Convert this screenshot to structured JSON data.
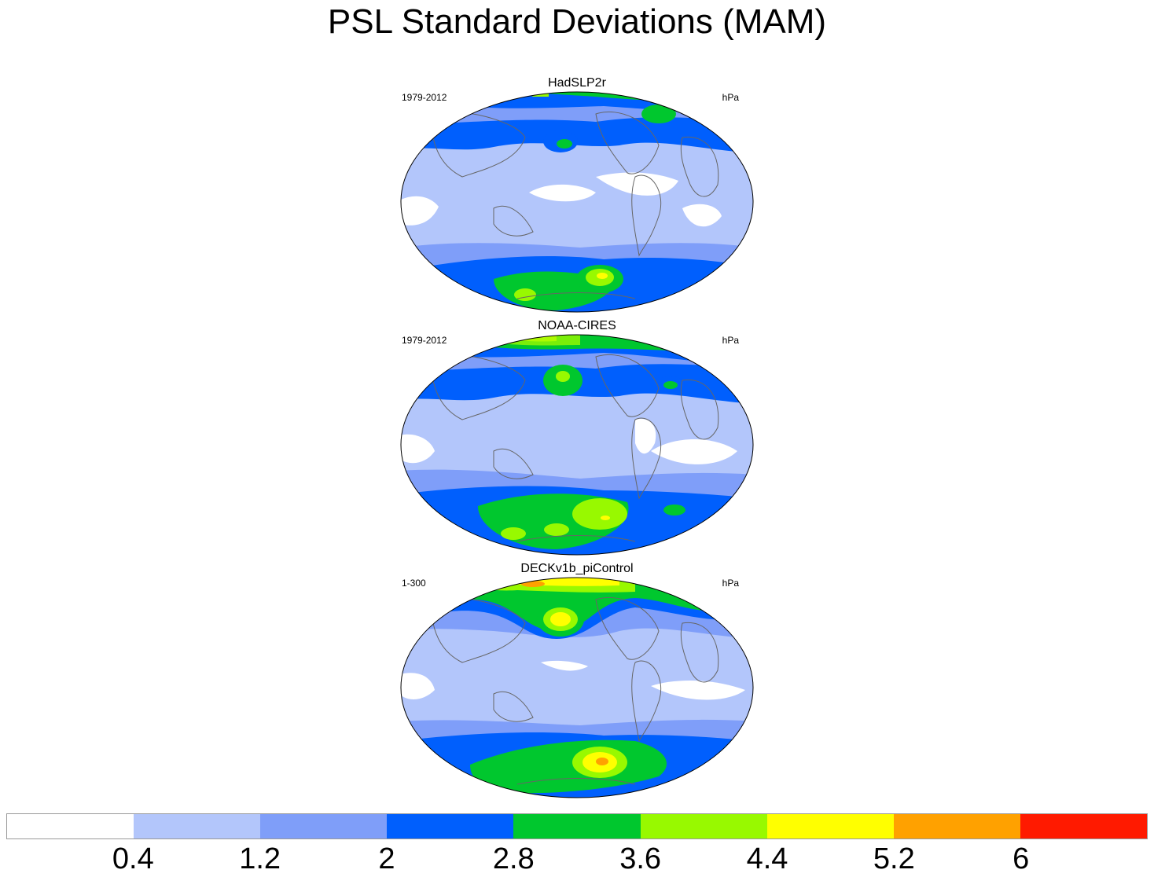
{
  "title": "PSL Standard Deviations (MAM)",
  "panels": [
    {
      "name": "HadSLP2r",
      "period": "1979-2012",
      "units": "hPa"
    },
    {
      "name": "NOAA-CIRES",
      "period": "1979-2012",
      "units": "hPa"
    },
    {
      "name": "DECKv1b_piControl",
      "period": "1-300",
      "units": "hPa"
    }
  ],
  "colorbar": {
    "colors": [
      "#ffffff",
      "#b3c6fb",
      "#7f9ef9",
      "#005ffd",
      "#00c72e",
      "#98f900",
      "#ffff00",
      "#ffa100",
      "#ff1a00"
    ],
    "labels": [
      "0.4",
      "1.2",
      "2",
      "2.8",
      "3.6",
      "4.4",
      "5.2",
      "6"
    ]
  }
}
